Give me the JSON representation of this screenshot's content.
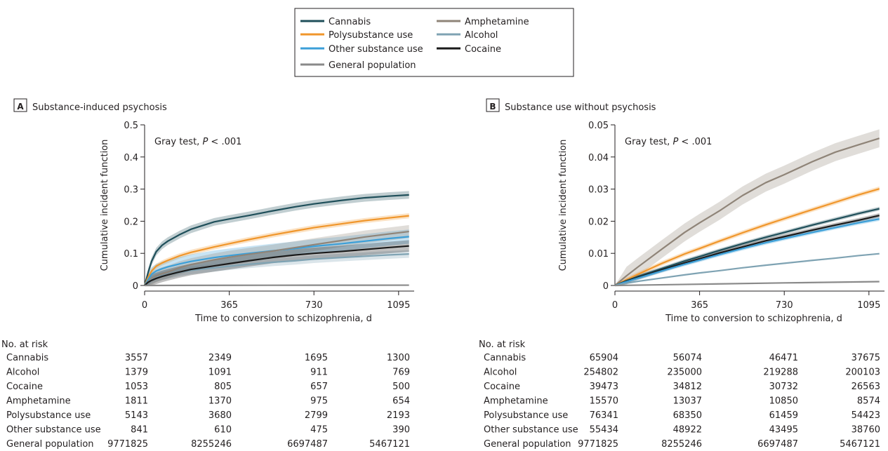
{
  "legend": {
    "items": [
      {
        "name": "Cannabis",
        "color": "#1f4f5a"
      },
      {
        "name": "Polysubstance use",
        "color": "#f0962b"
      },
      {
        "name": "Other substance use",
        "color": "#3b9fd8"
      },
      {
        "name": "General population",
        "color": "#8a8a8a"
      },
      {
        "name": "Amphetamine",
        "color": "#8f8478"
      },
      {
        "name": "Alcohol",
        "color": "#7fa3b3"
      },
      {
        "name": "Cocaine",
        "color": "#1a1a1a"
      }
    ]
  },
  "chart_data": [
    {
      "type": "line",
      "panel_letter": "A",
      "title": "Substance-induced psychosis",
      "annotation_prefix": "Gray test, ",
      "annotation_p": "P",
      "annotation_suffix": " < .001",
      "xlabel": "Time to conversion to schizophrenia, d",
      "ylabel": "Cumulative incident function",
      "xlim": [
        0,
        1150
      ],
      "ylim": [
        0,
        0.5
      ],
      "xticks": [
        0,
        365,
        730,
        1095
      ],
      "xtick_labels": [
        "0",
        "365",
        "730",
        "1095"
      ],
      "yticks": [
        0,
        0.1,
        0.2,
        0.3,
        0.4,
        0.5
      ],
      "ytick_labels": [
        "0",
        "0.1",
        "0.2",
        "0.3",
        "0.4",
        "0.5"
      ],
      "grid": false,
      "series": [
        {
          "name": "Cannabis",
          "color": "#1f4f5a",
          "band": 0.012,
          "x": [
            0,
            15,
            30,
            50,
            75,
            100,
            150,
            200,
            300,
            365,
            450,
            550,
            650,
            730,
            850,
            950,
            1050,
            1140
          ],
          "y": [
            0,
            0.04,
            0.075,
            0.105,
            0.125,
            0.138,
            0.158,
            0.175,
            0.198,
            0.207,
            0.218,
            0.232,
            0.245,
            0.254,
            0.265,
            0.273,
            0.278,
            0.282
          ]
        },
        {
          "name": "Polysubstance use",
          "color": "#f0962b",
          "band": 0.008,
          "x": [
            0,
            15,
            30,
            50,
            75,
            100,
            150,
            200,
            300,
            365,
            450,
            550,
            650,
            730,
            850,
            950,
            1050,
            1140
          ],
          "y": [
            0,
            0.025,
            0.045,
            0.06,
            0.07,
            0.078,
            0.092,
            0.103,
            0.12,
            0.13,
            0.143,
            0.157,
            0.17,
            0.18,
            0.192,
            0.202,
            0.21,
            0.217
          ]
        },
        {
          "name": "Other substance use",
          "color": "#3b9fd8",
          "band": 0.022,
          "x": [
            0,
            15,
            30,
            50,
            75,
            100,
            150,
            200,
            300,
            365,
            450,
            550,
            650,
            730,
            850,
            950,
            1050,
            1140
          ],
          "y": [
            0,
            0.018,
            0.035,
            0.045,
            0.052,
            0.058,
            0.067,
            0.075,
            0.087,
            0.093,
            0.1,
            0.108,
            0.115,
            0.122,
            0.13,
            0.138,
            0.146,
            0.152
          ]
        },
        {
          "name": "Amphetamine",
          "color": "#8f8478",
          "band": 0.02,
          "x": [
            0,
            15,
            30,
            50,
            75,
            100,
            150,
            200,
            300,
            365,
            450,
            550,
            650,
            730,
            850,
            950,
            1050,
            1140
          ],
          "y": [
            0,
            0.012,
            0.022,
            0.03,
            0.037,
            0.042,
            0.055,
            0.065,
            0.08,
            0.088,
            0.097,
            0.107,
            0.118,
            0.127,
            0.14,
            0.151,
            0.16,
            0.168
          ]
        },
        {
          "name": "Alcohol",
          "color": "#7fa3b3",
          "band": 0.012,
          "x": [
            0,
            15,
            30,
            50,
            75,
            100,
            150,
            200,
            300,
            365,
            450,
            550,
            650,
            730,
            850,
            950,
            1050,
            1140
          ],
          "y": [
            0,
            0.01,
            0.018,
            0.024,
            0.029,
            0.033,
            0.041,
            0.047,
            0.055,
            0.06,
            0.066,
            0.072,
            0.077,
            0.082,
            0.087,
            0.091,
            0.095,
            0.098
          ]
        },
        {
          "name": "Cocaine",
          "color": "#1a1a1a",
          "band": 0.018,
          "x": [
            0,
            15,
            30,
            50,
            75,
            100,
            150,
            200,
            300,
            365,
            450,
            550,
            650,
            730,
            850,
            950,
            1050,
            1140
          ],
          "y": [
            0,
            0.01,
            0.016,
            0.022,
            0.028,
            0.033,
            0.042,
            0.05,
            0.061,
            0.068,
            0.077,
            0.087,
            0.095,
            0.1,
            0.106,
            0.112,
            0.118,
            0.123
          ]
        },
        {
          "name": "General population",
          "color": "#8a8a8a",
          "band": 0,
          "x": [
            0,
            365,
            730,
            1140
          ],
          "y": [
            0,
            0.0005,
            0.0008,
            0.001
          ]
        }
      ],
      "risk_table": {
        "header": "No. at risk",
        "columns_x": [
          0,
          365,
          730,
          1095
        ],
        "rows": [
          {
            "label": "Cannabis",
            "values": [
              "3557",
              "2349",
              "1695",
              "1300"
            ]
          },
          {
            "label": "Alcohol",
            "values": [
              "1379",
              "1091",
              "911",
              "769"
            ]
          },
          {
            "label": "Cocaine",
            "values": [
              "1053",
              "805",
              "657",
              "500"
            ]
          },
          {
            "label": "Amphetamine",
            "values": [
              "1811",
              "1370",
              "975",
              "654"
            ]
          },
          {
            "label": "Polysubstance use",
            "values": [
              "5143",
              "3680",
              "2799",
              "2193"
            ]
          },
          {
            "label": "Other substance use",
            "values": [
              "841",
              "610",
              "475",
              "390"
            ]
          },
          {
            "label": "General population",
            "values": [
              "9771825",
              "8255246",
              "6697487",
              "5467121"
            ]
          }
        ]
      }
    },
    {
      "type": "line",
      "panel_letter": "B",
      "title": "Substance use without psychosis",
      "annotation_prefix": "Gray test, ",
      "annotation_p": "P",
      "annotation_suffix": " < .001",
      "xlabel": "Time to conversion to schizophrenia, d",
      "ylabel": "Cumulative incident function",
      "xlim": [
        0,
        1150
      ],
      "ylim": [
        0,
        0.05
      ],
      "xticks": [
        0,
        365,
        730,
        1095
      ],
      "xtick_labels": [
        "0",
        "365",
        "730",
        "1095"
      ],
      "yticks": [
        0,
        0.01,
        0.02,
        0.03,
        0.04,
        0.05
      ],
      "ytick_labels": [
        "0",
        "0.01",
        "0.02",
        "0.03",
        "0.04",
        "0.05"
      ],
      "grid": false,
      "series": [
        {
          "name": "Amphetamine",
          "color": "#8f8478",
          "band": 0.0028,
          "x": [
            0,
            50,
            100,
            200,
            300,
            365,
            450,
            550,
            650,
            730,
            850,
            950,
            1050,
            1140
          ],
          "y": [
            0,
            0.003,
            0.0058,
            0.0112,
            0.0165,
            0.0195,
            0.0232,
            0.028,
            0.032,
            0.0345,
            0.0385,
            0.0415,
            0.0438,
            0.0458
          ]
        },
        {
          "name": "Polysubstance use",
          "color": "#f0962b",
          "band": 0.0007,
          "x": [
            0,
            50,
            100,
            200,
            300,
            365,
            450,
            550,
            650,
            730,
            850,
            950,
            1050,
            1140
          ],
          "y": [
            0,
            0.0018,
            0.0035,
            0.0068,
            0.0098,
            0.0115,
            0.0138,
            0.0164,
            0.0189,
            0.0208,
            0.0236,
            0.0259,
            0.0282,
            0.0301
          ]
        },
        {
          "name": "Cannabis",
          "color": "#1f4f5a",
          "band": 0.0006,
          "x": [
            0,
            50,
            100,
            200,
            300,
            365,
            450,
            550,
            650,
            730,
            850,
            950,
            1050,
            1140
          ],
          "y": [
            0,
            0.0015,
            0.0028,
            0.0052,
            0.0076,
            0.009,
            0.0109,
            0.013,
            0.015,
            0.0165,
            0.0188,
            0.0206,
            0.0224,
            0.0239
          ]
        },
        {
          "name": "Cocaine",
          "color": "#1a1a1a",
          "band": 0.0007,
          "x": [
            0,
            50,
            100,
            200,
            300,
            365,
            450,
            550,
            650,
            730,
            850,
            950,
            1050,
            1140
          ],
          "y": [
            0,
            0.0013,
            0.0025,
            0.0048,
            0.007,
            0.0083,
            0.0101,
            0.012,
            0.0139,
            0.0152,
            0.0172,
            0.0188,
            0.0203,
            0.0218
          ]
        },
        {
          "name": "Other substance use",
          "color": "#3b9fd8",
          "band": 0.0006,
          "x": [
            0,
            50,
            100,
            200,
            300,
            365,
            450,
            550,
            650,
            730,
            850,
            950,
            1050,
            1140
          ],
          "y": [
            0,
            0.0012,
            0.0023,
            0.0045,
            0.0066,
            0.0079,
            0.0096,
            0.0115,
            0.0133,
            0.0146,
            0.0165,
            0.018,
            0.0195,
            0.0207
          ]
        },
        {
          "name": "Alcohol",
          "color": "#7fa3b3",
          "band": 0.0002,
          "x": [
            0,
            50,
            100,
            200,
            300,
            365,
            450,
            550,
            650,
            730,
            850,
            950,
            1050,
            1140
          ],
          "y": [
            0,
            0.0007,
            0.0013,
            0.0023,
            0.0033,
            0.0039,
            0.0046,
            0.0055,
            0.0063,
            0.0069,
            0.0078,
            0.0085,
            0.0093,
            0.0099
          ]
        },
        {
          "name": "General population",
          "color": "#8a8a8a",
          "band": 0,
          "x": [
            0,
            365,
            730,
            1140
          ],
          "y": [
            0,
            0.0004,
            0.0008,
            0.0012
          ]
        }
      ],
      "risk_table": {
        "header": "No. at risk",
        "columns_x": [
          0,
          365,
          730,
          1095
        ],
        "rows": [
          {
            "label": "Cannabis",
            "values": [
              "65904",
              "56074",
              "46471",
              "37675"
            ]
          },
          {
            "label": "Alcohol",
            "values": [
              "254802",
              "235000",
              "219288",
              "200103"
            ]
          },
          {
            "label": "Cocaine",
            "values": [
              "39473",
              "34812",
              "30732",
              "26563"
            ]
          },
          {
            "label": "Amphetamine",
            "values": [
              "15570",
              "13037",
              "10850",
              "8574"
            ]
          },
          {
            "label": "Polysubstance use",
            "values": [
              "76341",
              "68350",
              "61459",
              "54423"
            ]
          },
          {
            "label": "Other substance use",
            "values": [
              "55434",
              "48922",
              "43495",
              "38760"
            ]
          },
          {
            "label": "General population",
            "values": [
              "9771825",
              "8255246",
              "6697487",
              "5467121"
            ]
          }
        ]
      }
    }
  ]
}
